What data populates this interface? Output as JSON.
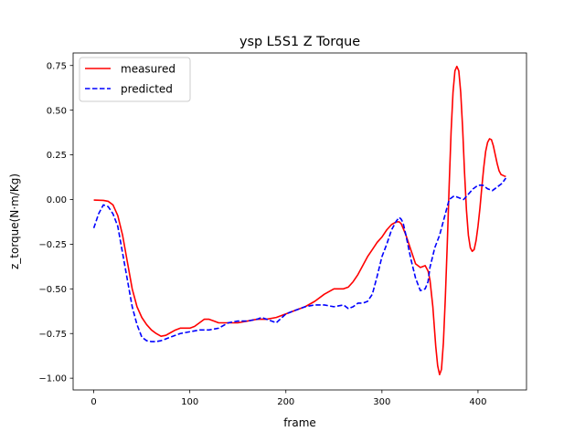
{
  "chart_data": {
    "type": "line",
    "title": "ysp L5S1 Z Torque",
    "xlabel": "frame",
    "ylabel": "z_torque(N·m/Kg)",
    "xlim": [
      -21.5,
      450.5
    ],
    "ylim": [
      -1.0657,
      0.8202
    ],
    "xticks": [
      0,
      100,
      200,
      300,
      400
    ],
    "xtick_labels": [
      "0",
      "100",
      "200",
      "300",
      "400"
    ],
    "yticks": [
      -1.0,
      -0.75,
      -0.5,
      -0.25,
      0.0,
      0.25,
      0.5,
      0.75
    ],
    "ytick_labels": [
      "−1.00",
      "−0.75",
      "−0.50",
      "−0.25",
      "0.00",
      "0.25",
      "0.50",
      "0.75"
    ],
    "grid": false,
    "legend": "top-left",
    "series": [
      {
        "name": "measured",
        "color": "#ff0000",
        "dash": "solid",
        "x": [
          0,
          10,
          15,
          20,
          25,
          30,
          35,
          40,
          45,
          50,
          55,
          60,
          65,
          70,
          75,
          80,
          85,
          90,
          95,
          100,
          105,
          110,
          115,
          120,
          125,
          130,
          140,
          150,
          160,
          170,
          180,
          190,
          200,
          210,
          220,
          230,
          240,
          250,
          260,
          265,
          270,
          275,
          280,
          285,
          290,
          295,
          300,
          305,
          310,
          315,
          318,
          320,
          322,
          325,
          330,
          335,
          340,
          345,
          348,
          350,
          353,
          356,
          358,
          360,
          362,
          364,
          366,
          368,
          370,
          372,
          374,
          376,
          378,
          380,
          382,
          384,
          386,
          388,
          390,
          392,
          394,
          396,
          398,
          400,
          402,
          404,
          406,
          408,
          410,
          412,
          414,
          416,
          418,
          420,
          422,
          424,
          426,
          428,
          429
        ],
        "values": [
          -0.003,
          -0.005,
          -0.01,
          -0.03,
          -0.09,
          -0.2,
          -0.35,
          -0.5,
          -0.6,
          -0.66,
          -0.7,
          -0.73,
          -0.75,
          -0.765,
          -0.76,
          -0.745,
          -0.73,
          -0.72,
          -0.72,
          -0.72,
          -0.71,
          -0.69,
          -0.67,
          -0.67,
          -0.68,
          -0.69,
          -0.69,
          -0.69,
          -0.68,
          -0.67,
          -0.67,
          -0.66,
          -0.64,
          -0.62,
          -0.6,
          -0.57,
          -0.53,
          -0.5,
          -0.5,
          -0.49,
          -0.46,
          -0.42,
          -0.37,
          -0.32,
          -0.28,
          -0.24,
          -0.21,
          -0.17,
          -0.14,
          -0.125,
          -0.125,
          -0.135,
          -0.16,
          -0.2,
          -0.28,
          -0.36,
          -0.38,
          -0.37,
          -0.4,
          -0.45,
          -0.6,
          -0.82,
          -0.93,
          -0.98,
          -0.95,
          -0.8,
          -0.55,
          -0.25,
          0.08,
          0.38,
          0.6,
          0.72,
          0.745,
          0.72,
          0.6,
          0.4,
          0.15,
          -0.06,
          -0.2,
          -0.27,
          -0.29,
          -0.28,
          -0.23,
          -0.15,
          -0.05,
          0.07,
          0.18,
          0.27,
          0.32,
          0.34,
          0.335,
          0.3,
          0.25,
          0.2,
          0.16,
          0.14,
          0.135,
          0.13,
          0.13
        ]
      },
      {
        "name": "predicted",
        "color": "#0000ff",
        "dash": "dashed",
        "x": [
          0,
          5,
          10,
          15,
          20,
          25,
          30,
          35,
          40,
          45,
          50,
          55,
          60,
          65,
          70,
          75,
          80,
          90,
          100,
          110,
          120,
          130,
          140,
          150,
          160,
          170,
          175,
          180,
          185,
          190,
          200,
          210,
          220,
          230,
          240,
          250,
          260,
          265,
          270,
          275,
          280,
          285,
          290,
          295,
          300,
          305,
          310,
          315,
          318,
          320,
          322,
          325,
          330,
          335,
          340,
          345,
          348,
          350,
          355,
          360,
          365,
          370,
          375,
          380,
          385,
          390,
          395,
          400,
          405,
          410,
          415,
          420,
          425,
          429
        ],
        "values": [
          -0.16,
          -0.08,
          -0.03,
          -0.04,
          -0.08,
          -0.15,
          -0.3,
          -0.45,
          -0.6,
          -0.7,
          -0.77,
          -0.79,
          -0.795,
          -0.795,
          -0.79,
          -0.78,
          -0.77,
          -0.75,
          -0.74,
          -0.73,
          -0.73,
          -0.72,
          -0.69,
          -0.68,
          -0.68,
          -0.67,
          -0.66,
          -0.67,
          -0.68,
          -0.69,
          -0.64,
          -0.62,
          -0.6,
          -0.59,
          -0.59,
          -0.6,
          -0.59,
          -0.61,
          -0.6,
          -0.58,
          -0.58,
          -0.57,
          -0.53,
          -0.43,
          -0.32,
          -0.25,
          -0.17,
          -0.12,
          -0.1,
          -0.11,
          -0.13,
          -0.2,
          -0.33,
          -0.44,
          -0.51,
          -0.5,
          -0.46,
          -0.38,
          -0.27,
          -0.2,
          -0.1,
          0.0,
          0.02,
          0.01,
          0.0,
          0.03,
          0.06,
          0.08,
          0.08,
          0.06,
          0.05,
          0.07,
          0.09,
          0.12
        ]
      }
    ]
  }
}
